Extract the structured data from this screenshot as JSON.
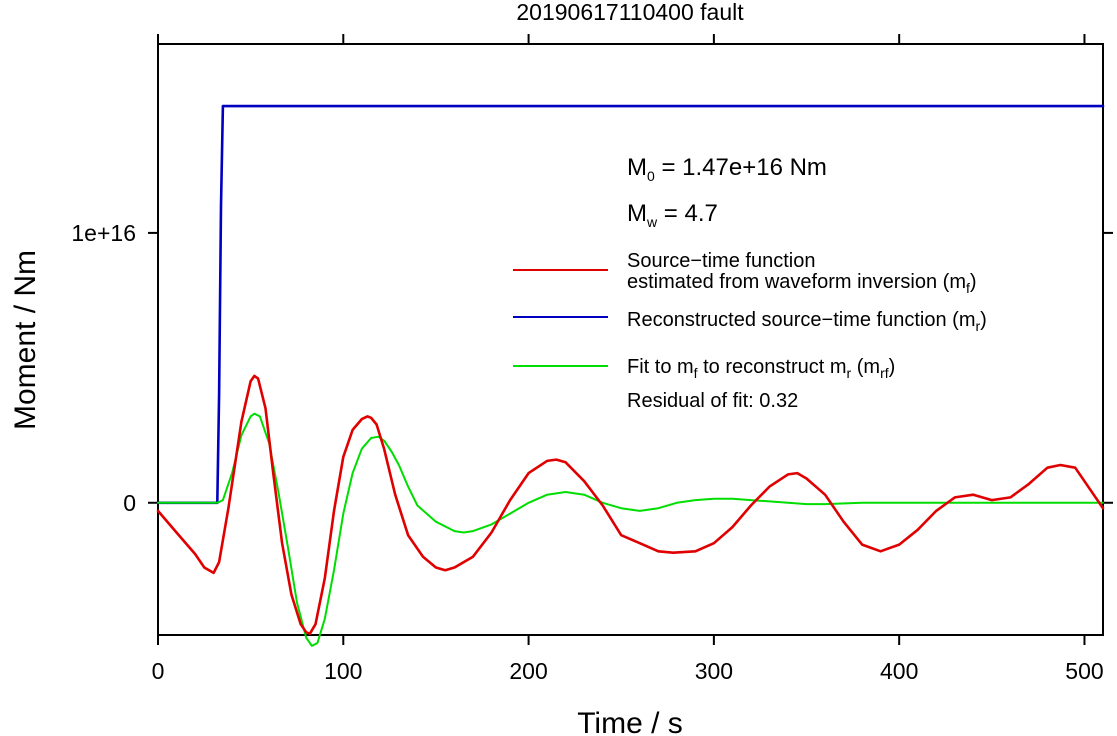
{
  "chart_data": {
    "type": "line",
    "title": "20190617110400 fault",
    "xlabel": "Time / s",
    "ylabel": "Moment / Nm",
    "xlim": [
      0,
      510
    ],
    "ylim": [
      -4900000000000000.0,
      1.7e+16
    ],
    "xticks": [
      0,
      100,
      200,
      300,
      400,
      500
    ],
    "xtick_labels": [
      "0",
      "100",
      "200",
      "300",
      "400",
      "500"
    ],
    "yticks": [
      0,
      1e+16
    ],
    "ytick_labels": [
      "0",
      "1e+16"
    ],
    "grid": false,
    "legend_position": "right",
    "annotations": {
      "m0_prefix": "M",
      "m0_sub": "0",
      "m0_value": " = 1.47e+16 Nm",
      "mw_prefix": "M",
      "mw_sub": "w",
      "mw_value": " = 4.7",
      "residual": "Residual of fit: 0.32"
    },
    "legend": [
      {
        "color": "#e00000",
        "line1": "Source−time function",
        "line2_main": "estimated from waveform inversion (m",
        "line2_sub": "f",
        "line2_end": ")"
      },
      {
        "color": "#0000c0",
        "line1_main": "Reconstructed source−time function (m",
        "line1_sub": "r",
        "line1_end": ")"
      },
      {
        "color": "#00dd00",
        "part1": "Fit to m",
        "sub1": "f",
        "part2": " to reconstruct m",
        "sub2": "r",
        "part3": " (m",
        "sub3": "rf",
        "part4": ")"
      }
    ],
    "series": [
      {
        "id": "mf",
        "color": "#e00000",
        "x": [
          0,
          10,
          20,
          25,
          30,
          33,
          38,
          45,
          50,
          52,
          54,
          58,
          62,
          67,
          72,
          77,
          80,
          82,
          85,
          90,
          95,
          100,
          105,
          110,
          113,
          115,
          118,
          122,
          128,
          135,
          143,
          150,
          155,
          160,
          170,
          180,
          190,
          200,
          210,
          215,
          220,
          230,
          240,
          250,
          260,
          270,
          278,
          290,
          300,
          310,
          320,
          330,
          340,
          345,
          350,
          360,
          370,
          380,
          390,
          400,
          410,
          420,
          430,
          440,
          450,
          460,
          470,
          480,
          487,
          495,
          505,
          510
        ],
        "y": [
          -300000000000000.0,
          -1100000000000000.0,
          -1900000000000000.0,
          -2400000000000000.0,
          -2600000000000000.0,
          -2200000000000000.0,
          -200000000000000.0,
          3000000000000000.0,
          4500000000000000.0,
          4700000000000000.0,
          4600000000000000.0,
          3500000000000000.0,
          1200000000000000.0,
          -1500000000000000.0,
          -3400000000000000.0,
          -4500000000000000.0,
          -4800000000000000.0,
          -4850000000000000.0,
          -4500000000000000.0,
          -2800000000000000.0,
          -300000000000000.0,
          1700000000000000.0,
          2700000000000000.0,
          3100000000000000.0,
          3200000000000000.0,
          3150000000000000.0,
          2900000000000000.0,
          2000000000000000.0,
          300000000000000.0,
          -1200000000000000.0,
          -2000000000000000.0,
          -2400000000000000.0,
          -2500000000000000.0,
          -2400000000000000.0,
          -2000000000000000.0,
          -1100000000000000.0,
          100000000000000.0,
          1100000000000000.0,
          1550000000000000.0,
          1600000000000000.0,
          1500000000000000.0,
          800000000000000.0,
          -100000000000000.0,
          -1200000000000000.0,
          -1500000000000000.0,
          -1800000000000000.0,
          -1850000000000000.0,
          -1800000000000000.0,
          -1500000000000000.0,
          -900000000000000.0,
          -100000000000000.0,
          600000000000000.0,
          1050000000000000.0,
          1100000000000000.0,
          900000000000000.0,
          300000000000000.0,
          -700000000000000.0,
          -1550000000000000.0,
          -1800000000000000.0,
          -1550000000000000.0,
          -1000000000000000.0,
          -300000000000000.0,
          200000000000000.0,
          300000000000000.0,
          100000000000000.0,
          200000000000000.0,
          700000000000000.0,
          1300000000000000.0,
          1400000000000000.0,
          1300000000000000.0,
          300000000000000.0,
          -200000000000000.0
        ]
      },
      {
        "id": "mr",
        "color": "#0000c0",
        "x": [
          0,
          32,
          33,
          34,
          35,
          36,
          510
        ],
        "y": [
          0,
          0,
          4000000000000000.0,
          1.1e+16,
          1.47e+16,
          1.47e+16,
          1.47e+16
        ]
      },
      {
        "id": "mrf",
        "color": "#00dd00",
        "x": [
          0,
          32,
          35,
          40,
          45,
          50,
          52,
          55,
          60,
          65,
          70,
          75,
          80,
          83,
          86,
          90,
          95,
          100,
          105,
          110,
          115,
          119,
          122,
          126,
          130,
          135,
          140,
          150,
          160,
          165,
          170,
          180,
          190,
          200,
          210,
          220,
          230,
          240,
          250,
          260,
          270,
          280,
          290,
          300,
          310,
          320,
          330,
          340,
          350,
          360,
          380,
          400,
          420,
          440,
          460,
          480,
          500,
          510
        ],
        "y": [
          0,
          0,
          100000000000000.0,
          1100000000000000.0,
          2500000000000000.0,
          3200000000000000.0,
          3300000000000000.0,
          3200000000000000.0,
          2200000000000000.0,
          400000000000000.0,
          -1600000000000000.0,
          -3700000000000000.0,
          -5000000000000000.0,
          -5300000000000000.0,
          -5200000000000000.0,
          -4300000000000000.0,
          -2500000000000000.0,
          -400000000000000.0,
          1100000000000000.0,
          2000000000000000.0,
          2400000000000000.0,
          2450000000000000.0,
          2300000000000000.0,
          1900000000000000.0,
          1400000000000000.0,
          600000000000000.0,
          -100000000000000.0,
          -700000000000000.0,
          -1050000000000000.0,
          -1100000000000000.0,
          -1050000000000000.0,
          -800000000000000.0,
          -400000000000000.0,
          0,
          300000000000000.0,
          400000000000000.0,
          300000000000000.0,
          0,
          -200000000000000.0,
          -300000000000000.0,
          -200000000000000.0,
          0,
          100000000000000.0,
          150000000000000.0,
          150000000000000.0,
          100000000000000.0,
          50000000000000.0,
          0,
          -50000000000000.0,
          -50000000000000.0,
          0,
          0,
          0,
          0,
          0,
          0,
          0,
          0
        ]
      }
    ]
  }
}
